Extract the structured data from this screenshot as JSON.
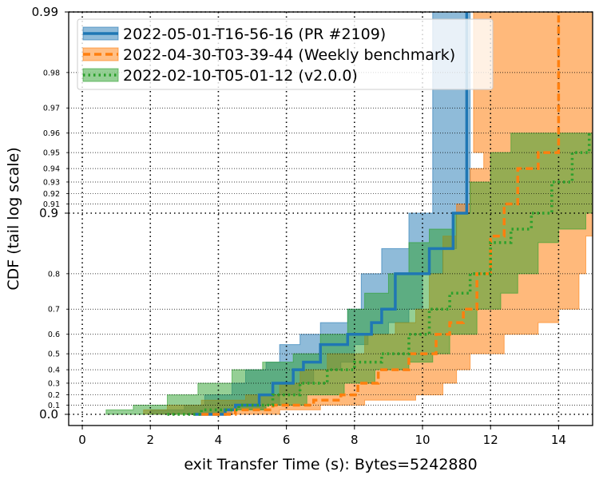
{
  "chart_data": {
    "type": "line",
    "xlabel": "exit Transfer Time (s): Bytes=5242880",
    "ylabel": "CDF (tail log scale)",
    "xlim": [
      -0.4,
      15.0
    ],
    "x_ticks": [
      "0",
      "2",
      "4",
      "6",
      "8",
      "10",
      "12",
      "14"
    ],
    "y_scale": "tail-log",
    "y_ticks_major": [
      "0.0",
      "0.9",
      "0.99"
    ],
    "y_ticks_minor": [
      "0.1",
      "0.2",
      "0.3",
      "0.4",
      "0.5",
      "0.6",
      "0.7",
      "0.8",
      "0.91",
      "0.92",
      "0.93",
      "0.94",
      "0.95",
      "0.96",
      "0.97",
      "0.98"
    ],
    "grid": true,
    "legend_position": "top-left",
    "series": [
      {
        "name": "2022-05-01-T16-56-16 (PR #2109)",
        "color": "#1f77b4",
        "style": "solid",
        "x": [
          3.3,
          4.2,
          4.5,
          5.2,
          5.6,
          6.2,
          6.5,
          7.0,
          7.8,
          8.5,
          8.8,
          9.2,
          10.2,
          10.9,
          11.3
        ],
        "y": [
          0.0,
          0.05,
          0.1,
          0.2,
          0.3,
          0.4,
          0.45,
          0.55,
          0.6,
          0.65,
          0.7,
          0.8,
          0.85,
          0.9,
          0.99
        ],
        "band_lower": [
          2.0,
          3.0,
          3.6,
          4.4,
          4.8,
          5.4,
          5.8,
          6.4,
          7.0,
          7.8,
          8.2,
          8.8,
          9.6,
          10.3,
          10.9
        ],
        "band_upper": [
          4.4,
          5.4,
          5.8,
          6.4,
          6.8,
          7.6,
          8.0,
          8.4,
          9.0,
          9.6,
          10.0,
          10.6,
          11.0,
          11.4,
          11.3
        ]
      },
      {
        "name": "2022-04-30-T03-39-44 (Weekly benchmark)",
        "color": "#ff7f0e",
        "style": "dashed",
        "x": [
          3.5,
          4.5,
          5.6,
          6.8,
          7.6,
          8.1,
          8.7,
          9.6,
          10.4,
          10.8,
          11.2,
          11.6,
          12.0,
          12.4,
          12.8,
          13.4,
          14.0
        ],
        "y": [
          0.0,
          0.05,
          0.1,
          0.15,
          0.2,
          0.3,
          0.4,
          0.5,
          0.6,
          0.65,
          0.7,
          0.8,
          0.87,
          0.91,
          0.94,
          0.95,
          0.99
        ],
        "band_lower": [
          1.8,
          2.5,
          3.5,
          4.8,
          5.8,
          6.4,
          7.2,
          8.3,
          9.2,
          9.8,
          10.2,
          10.6,
          11.0,
          11.4,
          11.8,
          11.5,
          12.0
        ],
        "band_upper": [
          5.8,
          7.0,
          8.3,
          9.8,
          10.6,
          11.0,
          11.4,
          12.4,
          13.4,
          14.0,
          14.6,
          14.8,
          15.0,
          15.0,
          15.0,
          15.0,
          15.0
        ]
      },
      {
        "name": "2022-02-10-T05-01-12 (v2.0.0)",
        "color": "#2ca02c",
        "style": "dotted",
        "x": [
          2.5,
          3.5,
          4.6,
          5.6,
          6.4,
          7.2,
          8.0,
          8.8,
          9.6,
          10.2,
          10.8,
          11.4,
          12.0,
          12.6,
          13.2,
          13.8,
          14.4,
          14.9
        ],
        "y": [
          0.0,
          0.05,
          0.1,
          0.2,
          0.3,
          0.4,
          0.45,
          0.5,
          0.6,
          0.7,
          0.75,
          0.8,
          0.86,
          0.88,
          0.9,
          0.93,
          0.95,
          0.96
        ],
        "band_lower": [
          0.7,
          1.5,
          2.5,
          3.4,
          4.4,
          5.3,
          6.2,
          7.0,
          7.8,
          8.3,
          9.0,
          9.6,
          10.2,
          10.9,
          11.4,
          12.0,
          12.6,
          13.1
        ],
        "band_upper": [
          4.2,
          5.4,
          6.6,
          7.7,
          8.6,
          9.6,
          10.3,
          10.8,
          11.6,
          12.3,
          12.8,
          13.4,
          14.0,
          14.8,
          15.0,
          15.0,
          15.0,
          15.0
        ]
      }
    ]
  }
}
